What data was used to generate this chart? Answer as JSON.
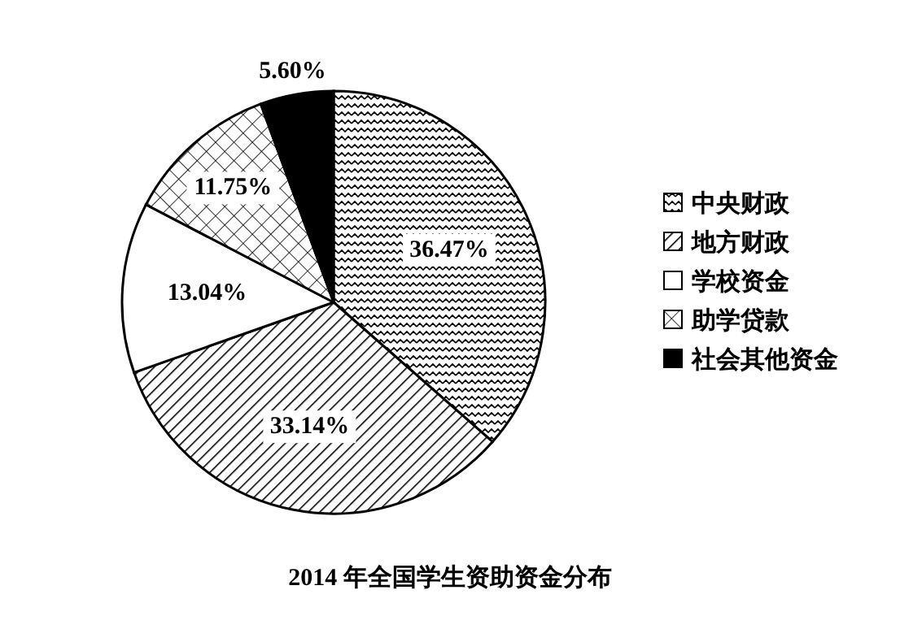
{
  "chart_data": {
    "type": "pie",
    "title": "2014 年全国学生资助资金分布",
    "categories": [
      "中央财政",
      "地方财政",
      "学校资金",
      "助学贷款",
      "社会其他资金"
    ],
    "values": [
      36.47,
      33.14,
      13.04,
      11.75,
      5.6
    ],
    "value_labels": [
      "36.47%",
      "33.14%",
      "13.04%",
      "11.75%",
      "5.60%"
    ],
    "colors": [
      "#000000",
      "#000000",
      "#ffffff",
      "#000000",
      "#000000"
    ],
    "legend": "right"
  }
}
